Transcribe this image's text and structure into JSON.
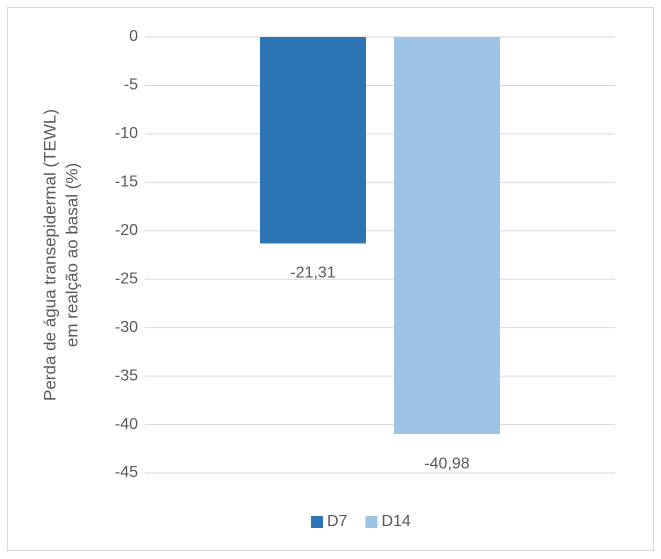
{
  "chart_data": {
    "type": "bar",
    "ylabel": [
      "Perda de água transepidermal (TEWL)",
      "em realção ao basal (%)"
    ],
    "categories": [
      null
    ],
    "series": [
      {
        "name": "D7",
        "color": "#2e75b6",
        "values": [
          -21.31
        ],
        "value_labels": [
          "-21,31"
        ]
      },
      {
        "name": "D14",
        "color": "#9dc3e6",
        "values": [
          -40.98
        ],
        "value_labels": [
          "-40,98"
        ]
      }
    ],
    "ylim": [
      -45,
      0
    ],
    "yticks": [
      0,
      -5,
      -10,
      -15,
      -20,
      -25,
      -30,
      -35,
      -40,
      -45
    ],
    "grid": true,
    "legend": "bottom"
  }
}
